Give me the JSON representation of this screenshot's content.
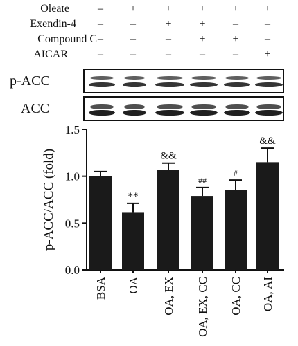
{
  "treatments": [
    {
      "label": "Oleate",
      "marks": [
        "–",
        "+",
        "+",
        "+",
        "+",
        "+"
      ]
    },
    {
      "label": "Exendin-4",
      "marks": [
        "–",
        "–",
        "+",
        "+",
        "–",
        "–"
      ]
    },
    {
      "label": "Compound C",
      "marks": [
        "–",
        "–",
        "–",
        "+",
        "+",
        "–"
      ]
    },
    {
      "label": "AICAR",
      "marks": [
        "–",
        "–",
        "–",
        "–",
        "–",
        "+"
      ]
    }
  ],
  "blots": [
    {
      "label": "p-ACC",
      "band_color": "#2a2a2a"
    },
    {
      "label": "ACC",
      "band_color": "#141414"
    }
  ],
  "chart_data": {
    "type": "bar",
    "categories": [
      "BSA",
      "OA",
      "OA, EX",
      "OA, EX, CC",
      "OA, CC",
      "OA, AI"
    ],
    "values": [
      1.0,
      0.61,
      1.07,
      0.79,
      0.85,
      1.15
    ],
    "errors": [
      0.05,
      0.1,
      0.07,
      0.09,
      0.11,
      0.15
    ],
    "annotations": [
      "",
      "**",
      "&&",
      "##",
      "#",
      "&&"
    ],
    "ylabel": "p-ACC/ACC (fold)",
    "xlabel": "",
    "title": "",
    "ylim": [
      0.0,
      1.5
    ],
    "yticks": [
      "0.0",
      "0.5",
      "1.0",
      "1.5"
    ],
    "bar_color": "#1a1a1a",
    "grid": false
  }
}
